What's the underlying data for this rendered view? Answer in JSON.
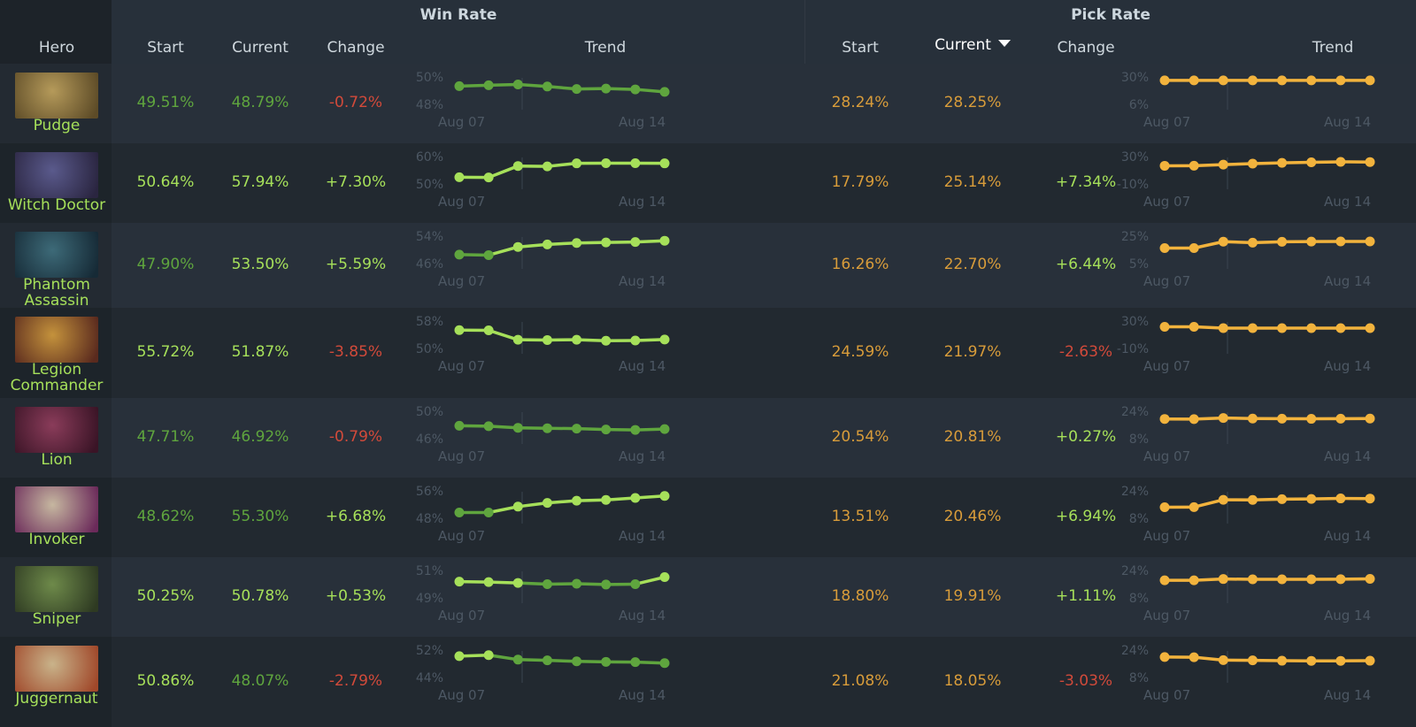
{
  "header": {
    "win_rate_group": "Win Rate",
    "pick_rate_group": "Pick Rate",
    "hero_col": "Hero",
    "wr_start": "Start",
    "wr_current": "Current",
    "wr_change": "Change",
    "wr_trend": "Trend",
    "pr_start": "Start",
    "pr_current": "Current",
    "pr_change": "Change",
    "pr_trend": "Trend"
  },
  "sort": {
    "column": "pr_current",
    "direction": "descending"
  },
  "colors": {
    "green": "#a6e05a",
    "dark_green": "#5fa53e",
    "red": "#d24a3a",
    "orange": "#d89c3a",
    "pick_line": "#f2b33d",
    "axis_text": "#4d5864"
  },
  "trend_axis": {
    "x_start": "Aug 07",
    "x_end": "Aug 14"
  },
  "rows": [
    {
      "name_lines": [
        "Pudge"
      ],
      "portrait_icon": "pudge-portrait",
      "portrait_colors": [
        "#b59a5a",
        "#5d4b27"
      ],
      "wr_start": "49.51%",
      "wr_current": "48.79%",
      "wr_change": "-0.72%",
      "pr_start": "28.24%",
      "pr_current": "28.25%",
      "pr_change": "",
      "wr_start_tone": "dkgreen",
      "wr_current_tone": "dkgreen",
      "wr_change_tone": "red",
      "pr_change_tone": "green",
      "wr_axis": [
        "50%",
        "48%"
      ],
      "wr_range": [
        47.5,
        50.5
      ],
      "wr_points": [
        49.5,
        49.6,
        49.7,
        49.45,
        49.15,
        49.2,
        49.1,
        48.8
      ],
      "wr_tones": [
        "dkgreen",
        "dkgreen",
        "dkgreen",
        "dkgreen",
        "dkgreen",
        "dkgreen",
        "dkgreen",
        "dkgreen"
      ],
      "pr_axis": [
        "30%",
        "6%"
      ],
      "pr_range": [
        4,
        31
      ],
      "pr_points": [
        28.2,
        28.2,
        28.2,
        28.2,
        28.2,
        28.2,
        28.2,
        28.25
      ]
    },
    {
      "name_lines": [
        "Witch Doctor"
      ],
      "portrait_icon": "witch-doctor-portrait",
      "portrait_colors": [
        "#5a5a8c",
        "#2a2540"
      ],
      "wr_start": "50.64%",
      "wr_current": "57.94%",
      "wr_change": "+7.30%",
      "pr_start": "17.79%",
      "pr_current": "25.14%",
      "pr_change": "+7.34%",
      "wr_start_tone": "green",
      "wr_current_tone": "green",
      "wr_change_tone": "green",
      "pr_change_tone": "green",
      "wr_axis": [
        "60%",
        "50%"
      ],
      "wr_range": [
        48,
        61
      ],
      "wr_points": [
        50.6,
        50.5,
        56.5,
        56.3,
        57.9,
        58.0,
        58.0,
        57.9
      ],
      "wr_tones": [
        "green",
        "green",
        "green",
        "green",
        "green",
        "green",
        "green",
        "green"
      ],
      "pr_axis": [
        "30%",
        "-10%"
      ],
      "pr_range": [
        -14,
        34
      ],
      "pr_points": [
        17.8,
        18.0,
        20.0,
        22.0,
        23.5,
        24.5,
        25.5,
        25.1
      ]
    },
    {
      "name_lines": [
        "Phantom",
        "Assassin"
      ],
      "portrait_icon": "phantom-assassin-portrait",
      "portrait_colors": [
        "#3d6a78",
        "#162a36"
      ],
      "wr_start": "47.90%",
      "wr_current": "53.50%",
      "wr_change": "+5.59%",
      "pr_start": "16.26%",
      "pr_current": "22.70%",
      "pr_change": "+6.44%",
      "wr_start_tone": "dkgreen",
      "wr_current_tone": "green",
      "wr_change_tone": "green",
      "pr_change_tone": "green",
      "wr_axis": [
        "54%",
        "46%"
      ],
      "wr_range": [
        45,
        55
      ],
      "wr_points": [
        47.9,
        47.7,
        51.0,
        52.0,
        52.6,
        52.8,
        53.0,
        53.5
      ],
      "wr_tones": [
        "dkgreen",
        "dkgreen",
        "green",
        "green",
        "green",
        "green",
        "green",
        "green"
      ],
      "pr_axis": [
        "25%",
        "5%"
      ],
      "pr_range": [
        3,
        27
      ],
      "pr_points": [
        16.3,
        16.3,
        22.5,
        21.5,
        22.4,
        22.6,
        22.7,
        22.7
      ]
    },
    {
      "name_lines": [
        "Legion",
        "Commander"
      ],
      "portrait_icon": "legion-commander-portrait",
      "portrait_colors": [
        "#c4923c",
        "#5a2a1e"
      ],
      "wr_start": "55.72%",
      "wr_current": "51.87%",
      "wr_change": "-3.85%",
      "pr_start": "24.59%",
      "pr_current": "21.97%",
      "pr_change": "-2.63%",
      "wr_start_tone": "green",
      "wr_current_tone": "green",
      "wr_change_tone": "red",
      "pr_change_tone": "red",
      "wr_axis": [
        "58%",
        "50%"
      ],
      "wr_range": [
        49,
        59
      ],
      "wr_points": [
        55.7,
        55.6,
        51.8,
        51.7,
        51.8,
        51.4,
        51.5,
        51.9
      ],
      "wr_tones": [
        "green",
        "green",
        "green",
        "green",
        "green",
        "green",
        "green",
        "green"
      ],
      "pr_axis": [
        "30%",
        "-10%"
      ],
      "pr_range": [
        -14,
        34
      ],
      "pr_points": [
        24.6,
        24.5,
        22.0,
        22.0,
        22.0,
        22.0,
        22.0,
        22.0
      ]
    },
    {
      "name_lines": [
        "Lion"
      ],
      "portrait_icon": "lion-portrait",
      "portrait_colors": [
        "#8a3c5a",
        "#3a1426"
      ],
      "wr_start": "47.71%",
      "wr_current": "46.92%",
      "wr_change": "-0.79%",
      "pr_start": "20.54%",
      "pr_current": "20.81%",
      "pr_change": "+0.27%",
      "wr_start_tone": "dkgreen",
      "wr_current_tone": "dkgreen",
      "wr_change_tone": "red",
      "pr_change_tone": "green",
      "wr_axis": [
        "50%",
        "46%"
      ],
      "wr_range": [
        45,
        51
      ],
      "wr_points": [
        47.7,
        47.6,
        47.2,
        47.1,
        47.0,
        46.8,
        46.7,
        46.9
      ],
      "wr_tones": [
        "dkgreen",
        "dkgreen",
        "dkgreen",
        "dkgreen",
        "dkgreen",
        "dkgreen",
        "dkgreen",
        "dkgreen"
      ],
      "pr_axis": [
        "24%",
        "8%"
      ],
      "pr_range": [
        6,
        26
      ],
      "pr_points": [
        20.5,
        20.4,
        21.3,
        20.8,
        20.7,
        20.6,
        20.7,
        20.8
      ]
    },
    {
      "name_lines": [
        "Invoker"
      ],
      "portrait_icon": "invoker-portrait",
      "portrait_colors": [
        "#c6b7a0",
        "#6b2a5a"
      ],
      "wr_start": "48.62%",
      "wr_current": "55.30%",
      "wr_change": "+6.68%",
      "pr_start": "13.51%",
      "pr_current": "20.46%",
      "pr_change": "+6.94%",
      "wr_start_tone": "dkgreen",
      "wr_current_tone": "dkgreen",
      "wr_change_tone": "green",
      "pr_change_tone": "green",
      "wr_axis": [
        "56%",
        "48%"
      ],
      "wr_range": [
        47,
        57
      ],
      "wr_points": [
        48.6,
        48.6,
        51.0,
        52.5,
        53.4,
        53.7,
        54.5,
        55.3
      ],
      "wr_tones": [
        "dkgreen",
        "dkgreen",
        "green",
        "green",
        "green",
        "green",
        "green",
        "green"
      ],
      "pr_axis": [
        "24%",
        "8%"
      ],
      "pr_range": [
        6,
        26
      ],
      "pr_points": [
        13.5,
        13.6,
        19.5,
        19.4,
        20.0,
        20.2,
        20.6,
        20.5
      ]
    },
    {
      "name_lines": [
        "Sniper"
      ],
      "portrait_icon": "sniper-portrait",
      "portrait_colors": [
        "#6e8a4a",
        "#2e3a22"
      ],
      "wr_start": "50.25%",
      "wr_current": "50.78%",
      "wr_change": "+0.53%",
      "pr_start": "18.80%",
      "pr_current": "19.91%",
      "pr_change": "+1.11%",
      "wr_start_tone": "green",
      "wr_current_tone": "green",
      "wr_change_tone": "green",
      "pr_change_tone": "green",
      "wr_axis": [
        "51%",
        "49%"
      ],
      "wr_range": [
        48.5,
        51.5
      ],
      "wr_points": [
        50.25,
        50.2,
        50.1,
        49.95,
        50.0,
        49.9,
        49.95,
        50.8
      ],
      "wr_tones": [
        "green",
        "green",
        "green",
        "dkgreen",
        "dkgreen",
        "dkgreen",
        "dkgreen",
        "green"
      ],
      "pr_axis": [
        "24%",
        "8%"
      ],
      "pr_range": [
        6,
        26
      ],
      "pr_points": [
        18.8,
        18.8,
        19.8,
        19.6,
        19.6,
        19.6,
        19.7,
        19.9
      ]
    },
    {
      "name_lines": [
        "Juggernaut"
      ],
      "portrait_icon": "juggernaut-portrait",
      "portrait_colors": [
        "#c9b38a",
        "#a0482a"
      ],
      "wr_start": "50.86%",
      "wr_current": "48.07%",
      "wr_change": "-2.79%",
      "pr_start": "21.08%",
      "pr_current": "18.05%",
      "pr_change": "-3.03%",
      "wr_start_tone": "green",
      "wr_current_tone": "dkgreen",
      "wr_change_tone": "red",
      "pr_change_tone": "red",
      "wr_axis": [
        "52%",
        "44%"
      ],
      "wr_range": [
        43,
        53
      ],
      "wr_points": [
        50.9,
        51.3,
        49.5,
        49.2,
        48.8,
        48.6,
        48.5,
        48.1
      ],
      "wr_tones": [
        "green",
        "green",
        "dkgreen",
        "dkgreen",
        "dkgreen",
        "dkgreen",
        "dkgreen",
        "dkgreen"
      ],
      "pr_axis": [
        "24%",
        "8%"
      ],
      "pr_range": [
        6,
        26
      ],
      "pr_points": [
        21.1,
        20.9,
        18.6,
        18.4,
        18.1,
        18.0,
        18.0,
        18.1
      ]
    }
  ]
}
